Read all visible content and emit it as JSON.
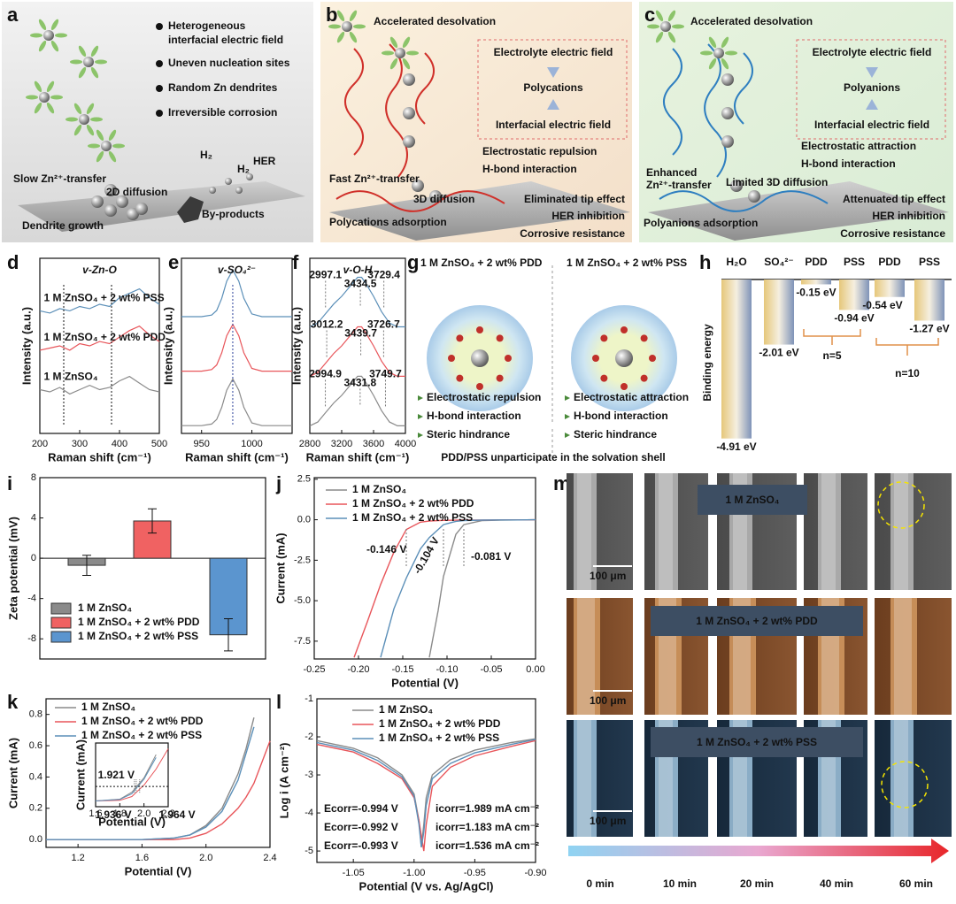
{
  "panel_labels": [
    "a",
    "b",
    "c",
    "d",
    "e",
    "f",
    "g",
    "h",
    "i",
    "j",
    "k",
    "l",
    "m"
  ],
  "panel_a": {
    "lines": [
      "Heterogeneous",
      "interfacial electric field",
      "Uneven nucleation sites",
      "Random Zn dendrites",
      "Irreversible corrosion"
    ],
    "labels": [
      "Slow Zn²⁺-transfer",
      "2D diffusion",
      "HER",
      "Dendrite growth",
      "By-products",
      "H₂",
      "H₂"
    ]
  },
  "panel_b": {
    "labels": [
      "Accelerated desolvation",
      "Electrolyte electric field",
      "Polycations",
      "Interfacial electric field",
      "Electrostatic repulsion",
      "H-bond interaction",
      "Fast Zn²⁺-transfer",
      "3D diffusion",
      "Eliminated tip effect",
      "HER inhibition",
      "Corrosive resistance",
      "Polycations adsorption"
    ]
  },
  "panel_c": {
    "labels": [
      "Accelerated desolvation",
      "Electrolyte electric field",
      "Polyanions",
      "Interfacial electric field",
      "Electrostatic attraction",
      "H-bond interaction",
      "Enhanced",
      "Zn²⁺-transfer",
      "Limited 3D diffusion",
      "Attenuated tip effect",
      "HER inhibition",
      "Corrosive resistance",
      "Polyanions adsorption"
    ]
  },
  "panel_g": {
    "titles": [
      "1 M ZnSO₄ + 2 wt% PDD",
      "1 M ZnSO₄ + 2 wt% PSS"
    ],
    "left": [
      "Electrostatic repulsion",
      "H-bond interaction",
      "Steric hindrance"
    ],
    "right": [
      "Electrostatic attraction",
      "H-bond interaction",
      "Steric hindrance"
    ],
    "caption": "PDD/PSS unparticipate in the solvation shell"
  },
  "panel_m": {
    "titles": [
      "1 M ZnSO₄",
      "1 M ZnSO₄ + 2 wt% PDD",
      "1 M ZnSO₄ + 2 wt% PSS"
    ],
    "scale": [
      "100 μm",
      "100 μm",
      "100 μm"
    ],
    "times": [
      "0 min",
      "10 min",
      "20 min",
      "40 min",
      "60 min"
    ]
  },
  "chart_data": [
    {
      "type": "line",
      "x_label": "Raman shift (cm⁻¹)",
      "y_label": "Intensity (a.u.)",
      "annotation": "v-Zn-O",
      "xlim": [
        200,
        500
      ],
      "xticks": [
        200,
        300,
        400,
        500
      ],
      "ylim": [
        0,
        4
      ],
      "vlines": [
        260,
        380
      ],
      "x": [
        200,
        225,
        250,
        275,
        300,
        325,
        350,
        375,
        400,
        425,
        450,
        475,
        500
      ],
      "series": [
        {
          "name": "1 M ZnSO₄",
          "color": "#8a8a8a",
          "values": [
            1.0,
            0.95,
            1.05,
            0.9,
            1.0,
            1.1,
            1.0,
            1.05,
            1.2,
            1.3,
            1.15,
            1.0,
            0.95
          ]
        },
        {
          "name": "1 M ZnSO₄ + 2 wt% PDD",
          "color": "#e8555a",
          "values": [
            1.9,
            1.95,
            2.0,
            1.9,
            2.05,
            2.0,
            2.1,
            2.05,
            2.2,
            2.35,
            2.45,
            2.25,
            2.1
          ]
        },
        {
          "name": "1 M ZnSO₄ + 2 wt% PSS",
          "color": "#5b8fb8",
          "values": [
            2.8,
            2.75,
            2.85,
            2.8,
            2.9,
            2.85,
            2.95,
            2.9,
            3.1,
            3.2,
            3.3,
            3.1,
            2.95
          ]
        }
      ]
    },
    {
      "type": "line",
      "x_label": "Raman shift (cm⁻¹)",
      "y_label": "Intensity (a.u.)",
      "annotation": "v-SO₄²⁻",
      "xlim": [
        930,
        1040
      ],
      "xticks": [
        950,
        1000
      ],
      "ylim": [
        0,
        4.5
      ],
      "vlines": [
        981
      ],
      "x": [
        930,
        940,
        950,
        960,
        965,
        970,
        975,
        981,
        987,
        992,
        1000,
        1010,
        1020,
        1030,
        1040
      ],
      "series": [
        {
          "color": "#8a8a8a",
          "values": [
            0.2,
            0.2,
            0.2,
            0.24,
            0.36,
            0.67,
            1.11,
            1.4,
            1.11,
            0.67,
            0.27,
            0.2,
            0.2,
            0.2,
            0.2
          ]
        },
        {
          "color": "#e8555a",
          "values": [
            1.6,
            1.6,
            1.6,
            1.64,
            1.76,
            2.07,
            2.51,
            2.8,
            2.51,
            2.07,
            1.67,
            1.6,
            1.6,
            1.6,
            1.6
          ]
        },
        {
          "color": "#5b8fb8",
          "values": [
            3.0,
            3.0,
            3.0,
            3.04,
            3.16,
            3.47,
            3.91,
            4.2,
            3.91,
            3.47,
            3.07,
            3.0,
            3.0,
            3.0,
            3.0
          ]
        }
      ]
    },
    {
      "type": "line",
      "x_label": "Raman shift (cm⁻¹)",
      "y_label": "Intensity (a.u.)",
      "annotation": "v-O-H",
      "xlim": [
        2800,
        4000
      ],
      "xticks": [
        2800,
        3200,
        3600,
        4000
      ],
      "ylim": [
        0,
        4.6
      ],
      "x": [
        2800,
        2900,
        3000,
        3100,
        3200,
        3300,
        3400,
        3450,
        3500,
        3600,
        3700,
        3800,
        3900,
        4000
      ],
      "series": [
        {
          "color": "#8a8a8a",
          "values": [
            0.2,
            0.3,
            0.55,
            0.8,
            1.0,
            1.25,
            1.5,
            1.5,
            1.35,
            1.0,
            0.6,
            0.3,
            0.2,
            0.2
          ],
          "peaks": [
            2994.9,
            3431.8,
            3749.7
          ]
        },
        {
          "color": "#e8555a",
          "values": [
            1.5,
            1.6,
            1.85,
            2.1,
            2.3,
            2.55,
            2.8,
            2.8,
            2.65,
            2.3,
            1.9,
            1.6,
            1.5,
            1.5
          ],
          "peaks": [
            3012.2,
            3439.7,
            3726.7
          ]
        },
        {
          "color": "#5b8fb8",
          "values": [
            2.8,
            2.9,
            3.15,
            3.4,
            3.6,
            3.85,
            4.1,
            4.1,
            3.95,
            3.6,
            3.2,
            2.9,
            2.8,
            2.8
          ],
          "peaks": [
            2997.1,
            3434.5,
            3729.4
          ]
        }
      ]
    },
    {
      "type": "bar",
      "y_label": "Binding energy",
      "ylim": [
        -5.3,
        0.3
      ],
      "categories": [
        "H₂O",
        "SO₄²⁻",
        "PDD",
        "PSS",
        "PDD",
        "PSS"
      ],
      "values": [
        -4.91,
        -2.01,
        -0.15,
        -0.94,
        -0.54,
        -1.27
      ],
      "value_labels": [
        "-4.91 eV",
        "-2.01 eV",
        "-0.15 eV",
        "-0.94 eV",
        "-0.54 eV",
        "-1.27 eV"
      ],
      "annotations": [
        "n=5",
        "n=10"
      ]
    },
    {
      "type": "bar",
      "y_label": "Zeta potential (mV)",
      "ylim": [
        -10,
        8
      ],
      "yticks": [
        -8,
        -4,
        0,
        4,
        8
      ],
      "categories": [
        "1 M ZnSO₄",
        "1 M ZnSO₄ + 2 wt% PDD",
        "1 M ZnSO₄ + 2 wt% PSS"
      ],
      "values": [
        -0.7,
        3.7,
        -7.6
      ],
      "errors": [
        1.0,
        1.2,
        1.6
      ],
      "colors": [
        "#8a8a8a",
        "#f06262",
        "#5b95cf"
      ]
    },
    {
      "type": "line",
      "x_label": "Potential (V)",
      "y_label": "Current (mA)",
      "xlim": [
        -0.25,
        0
      ],
      "xticks": [
        -0.25,
        {
          "value": -0.2,
          "label": "-0.20"
        },
        -0.15,
        {
          "value": -0.1,
          "label": "-0.10"
        },
        -0.05,
        {
          "value": 0,
          "label": "0.00"
        }
      ],
      "ylim": [
        -8.6,
        2.6
      ],
      "yticks": [
        2.5,
        {
          "value": 0,
          "label": "0.0"
        },
        -2.5,
        {
          "value": -5,
          "label": "-5.0"
        },
        -7.5
      ],
      "markers": [
        {
          "value": -0.146,
          "label": "-0.146 V"
        },
        {
          "value": -0.104,
          "label": "-0.104 V"
        },
        {
          "value": -0.081,
          "label": "-0.081 V"
        }
      ],
      "x": [
        -0.205,
        -0.19,
        -0.175,
        -0.16,
        -0.146,
        -0.13,
        -0.12,
        -0.11,
        -0.104,
        -0.09,
        -0.081,
        -0.06,
        -0.04,
        -0.02,
        0
      ],
      "series": [
        {
          "name": "1 M ZnSO₄",
          "color": "#8a8a8a",
          "values": [
            null,
            null,
            null,
            null,
            null,
            null,
            -8.5,
            -5.6,
            -3.5,
            -0.9,
            -0.3,
            -0.05,
            -0.02,
            -0.01,
            0
          ]
        },
        {
          "name": "1 M ZnSO₄ + 2 wt% PDD",
          "color": "#e8555a",
          "values": [
            -8.5,
            -6.3,
            -4.0,
            -2.0,
            -0.6,
            -0.15,
            -0.08,
            -0.05,
            -0.04,
            -0.03,
            -0.02,
            -0.02,
            -0.01,
            -0.01,
            0
          ]
        },
        {
          "name": "1 M ZnSO₄ + 2 wt% PSS",
          "color": "#5b8fb8",
          "values": [
            null,
            null,
            -8.5,
            -5.5,
            -3.6,
            -1.8,
            -1.1,
            -0.6,
            -0.3,
            -0.1,
            -0.05,
            -0.02,
            -0.01,
            -0.01,
            0
          ]
        }
      ]
    },
    {
      "type": "line",
      "x_label": "Potential (V)",
      "y_label": "Current (mA)",
      "xlim": [
        1.0,
        2.4
      ],
      "xticks": [
        1.2,
        1.6,
        {
          "value": 2,
          "label": "2.0"
        },
        2.4
      ],
      "ylim": [
        -0.05,
        0.9
      ],
      "yticks": [
        {
          "value": 0,
          "label": "0.0"
        },
        0.2,
        0.4,
        0.6,
        0.8
      ],
      "x": [
        1.0,
        1.2,
        1.4,
        1.6,
        1.8,
        1.9,
        2.0,
        2.1,
        2.2,
        2.25,
        2.3,
        2.4
      ],
      "series": [
        {
          "name": "1 M ZnSO₄",
          "color": "#8a8a8a",
          "values": [
            0,
            0,
            0,
            0,
            0.01,
            0.03,
            0.09,
            0.2,
            0.42,
            0.58,
            0.78,
            null
          ]
        },
        {
          "name": "1 M ZnSO₄ + 2 wt% PDD",
          "color": "#e8555a",
          "values": [
            0,
            0,
            0,
            0,
            0,
            0.01,
            0.04,
            0.1,
            0.2,
            0.27,
            0.36,
            0.63
          ]
        },
        {
          "name": "1 M ZnSO₄ + 2 wt% PSS",
          "color": "#5b8fb8",
          "values": [
            0,
            0,
            0,
            0,
            0.01,
            0.03,
            0.08,
            0.18,
            0.38,
            0.55,
            0.72,
            null
          ]
        }
      ],
      "inset": {
        "x_label": "Potential (V)",
        "y_label": "Current (mA)",
        "xlim": [
          1.6,
          2.2
        ],
        "xticks": [
          1.6,
          1.8,
          {
            "value": 2,
            "label": "2.0"
          },
          2.2
        ],
        "ylim": [
          -0.02,
          0.2
        ],
        "hline": 0.05,
        "markers": [
          {
            "value": 1.921,
            "label": "1.921 V"
          },
          {
            "value": 1.936,
            "label": "1.936 V"
          },
          {
            "value": 1.964,
            "label": "1.964 V"
          }
        ],
        "x": [
          1.6,
          1.8,
          1.9,
          1.95,
          2.0,
          2.1,
          2.2
        ],
        "series": [
          {
            "color": "#8a8a8a",
            "values": [
              0,
              0.006,
              0.03,
              0.055,
              0.08,
              0.16,
              null
            ]
          },
          {
            "color": "#e8555a",
            "values": [
              0,
              0.002,
              0.015,
              0.035,
              0.055,
              0.11,
              0.18
            ]
          },
          {
            "color": "#5b8fb8",
            "values": [
              0,
              0.005,
              0.025,
              0.05,
              0.075,
              0.15,
              null
            ]
          }
        ]
      }
    },
    {
      "type": "line",
      "x_label": "Potential (V vs. Ag/AgCl)",
      "y_label": "Log i (A cm⁻²)",
      "xlim": [
        -1.08,
        -0.9
      ],
      "xticks": [
        -1.05,
        {
          "value": -1,
          "label": "-1.00"
        },
        -0.95,
        {
          "value": -0.9,
          "label": "-0.90"
        }
      ],
      "ylim": [
        -5.3,
        -1
      ],
      "yticks": [
        -1,
        -2,
        -3,
        -4,
        -5
      ],
      "annotations": [
        [
          "Ecorr=-0.994 V",
          "icorr=1.989 mA cm⁻²"
        ],
        [
          "Ecorr=-0.992 V",
          "icorr=1.183 mA cm⁻²"
        ],
        [
          "Ecorr=-0.993 V",
          "icorr=1.536 mA cm⁻²"
        ]
      ],
      "x": [
        -1.08,
        -1.05,
        -1.03,
        -1.01,
        -1.0,
        -0.996,
        -0.994,
        -0.992,
        -0.99,
        -0.985,
        -0.97,
        -0.95,
        -0.92,
        -0.9
      ],
      "series": [
        {
          "name": "1 M ZnSO₄",
          "color": "#8a8a8a",
          "values": [
            -2.1,
            -2.3,
            -2.55,
            -3.0,
            -3.5,
            -4.2,
            -4.9,
            -4.3,
            -3.6,
            -3.0,
            -2.6,
            -2.35,
            -2.15,
            -2.05
          ]
        },
        {
          "name": "1 M ZnSO₄ + 2 wt% PDD",
          "color": "#e8555a",
          "values": [
            -2.2,
            -2.4,
            -2.7,
            -3.1,
            -3.6,
            -4.2,
            -4.6,
            -5.0,
            -4.3,
            -3.3,
            -2.8,
            -2.5,
            -2.25,
            -2.1
          ]
        },
        {
          "name": "1 M ZnSO₄ + 2 wt% PSS",
          "color": "#5b8fb8",
          "values": [
            -2.15,
            -2.35,
            -2.62,
            -3.05,
            -3.55,
            -4.3,
            -4.9,
            -4.5,
            -3.8,
            -3.1,
            -2.7,
            -2.42,
            -2.2,
            -2.07
          ]
        }
      ]
    }
  ]
}
